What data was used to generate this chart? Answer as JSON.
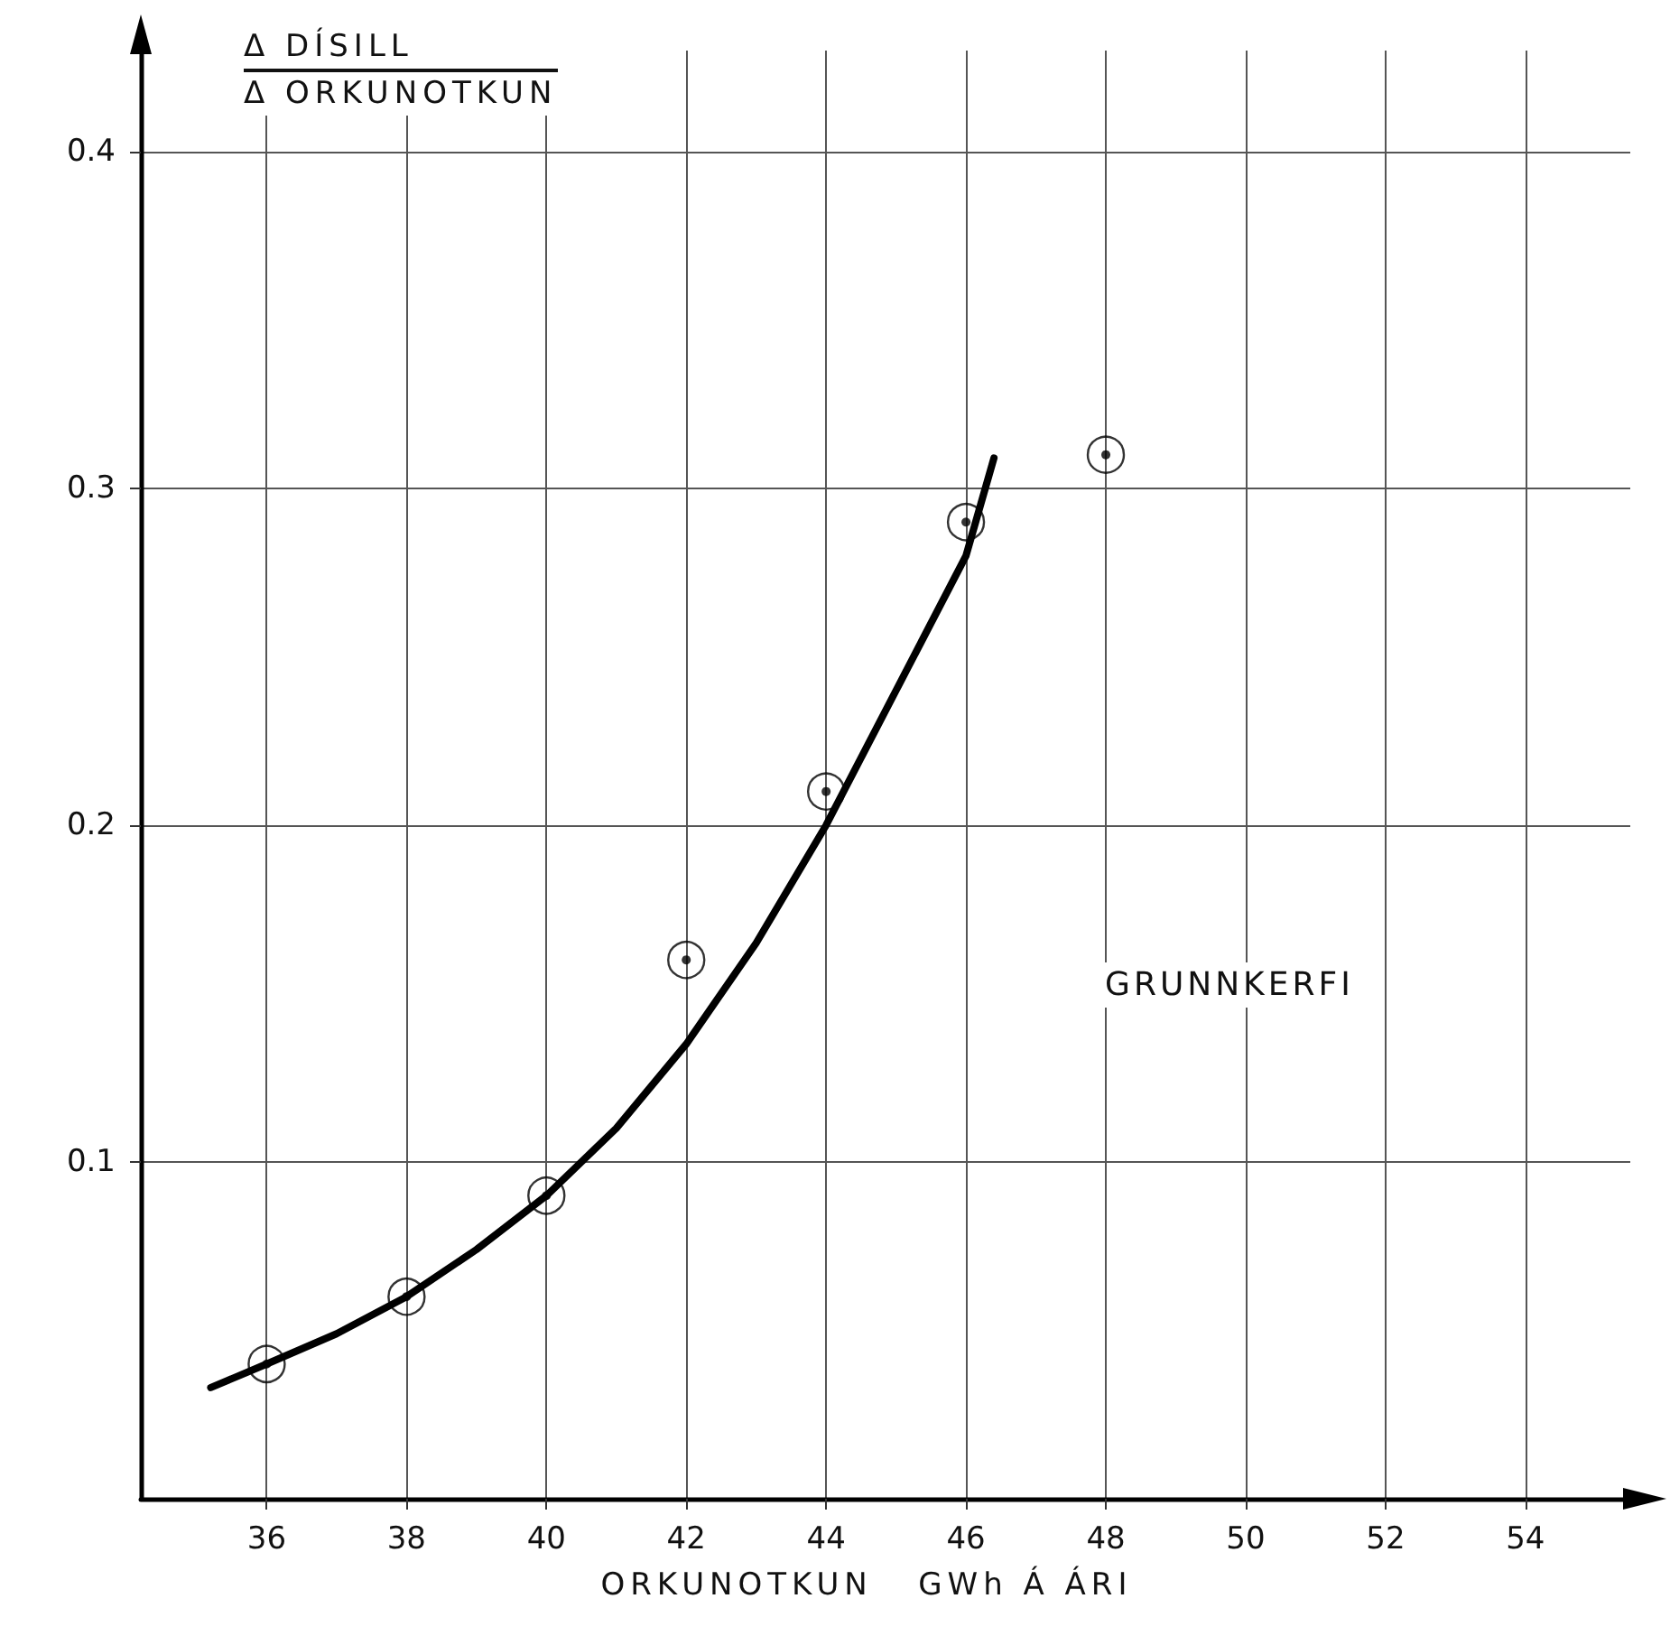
{
  "chart_data": {
    "type": "scatter",
    "xlabel": "ORKUNOTKUN   GWh Á ÁRI",
    "ylabel": "Δ DÍSILL\nΔ ORKUNOTKUN",
    "annotations": [
      "GRUNNKERFI"
    ],
    "xlim": [
      34.2,
      55.5
    ],
    "xticks": [
      36,
      38,
      40,
      42,
      44,
      46,
      48,
      50,
      52,
      54
    ],
    "ylim": [
      0,
      0.43
    ],
    "yticks": [
      0.1,
      0.2,
      0.3,
      0.4
    ],
    "grid": true,
    "marker": "circle",
    "series": [
      {
        "x": [
          36,
          38,
          40,
          42,
          44,
          46,
          48
        ],
        "values": [
          0.04,
          0.06,
          0.09,
          0.16,
          0.21,
          0.29,
          0.31
        ],
        "color": "#000000"
      },
      {
        "type": "line",
        "marker": "none",
        "line_style": "solid",
        "x": [
          35.2,
          36,
          37,
          38,
          39,
          40,
          41,
          42,
          43,
          44,
          45,
          46,
          46.4
        ],
        "values": [
          0.033,
          0.04,
          0.049,
          0.06,
          0.074,
          0.09,
          0.11,
          0.135,
          0.165,
          0.2,
          0.24,
          0.28,
          0.309
        ],
        "color": "#000000"
      }
    ]
  }
}
